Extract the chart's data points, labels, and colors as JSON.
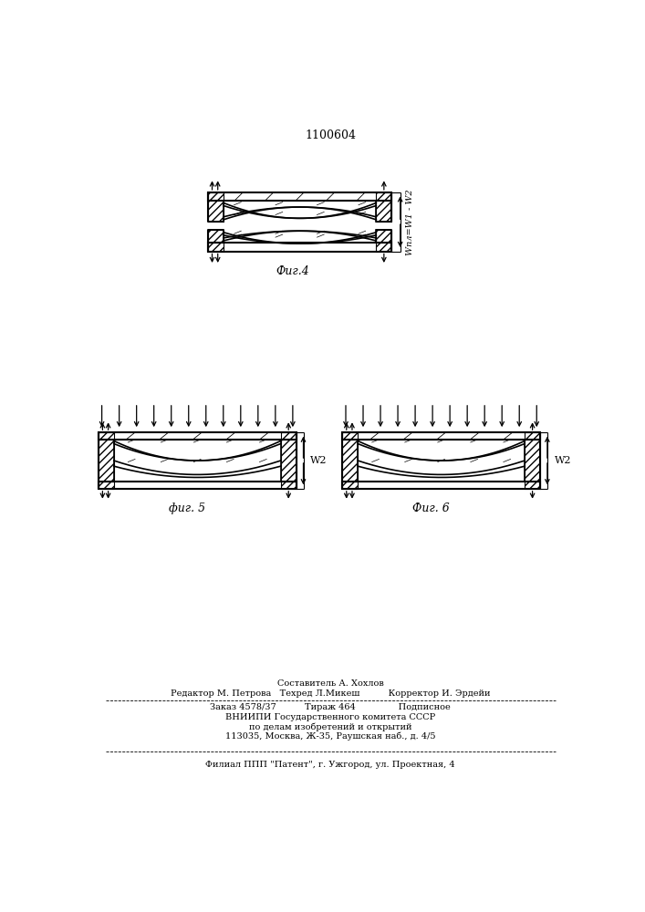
{
  "title": "1100604",
  "bg_color": "#ffffff",
  "fig4_label": "Фиг.4",
  "fig5_label": "фиг. 5",
  "fig6_label": "Фиг. 6",
  "annotation_fig4": "Wпл=W1 - W2",
  "annotation_w2": "W2",
  "footer_line1": "Составитель А. Хохлов",
  "footer_line2": "Редактор М. Петрова   Техред Л.Микеш          Корректор И. Эрдейи",
  "footer_line3": "Заказ 4578/37          Тираж 464               Подписное",
  "footer_line4": "ВНИИПИ Государственного комитета СССР",
  "footer_line5": "по делам изобретений и открытий",
  "footer_line6": "113035, Москва, Ж-35, Раушская наб., д. 4/5",
  "footer_line7": "Филиал ППП \"Патент\", г. Ужгород, ул. Проектная, 4"
}
